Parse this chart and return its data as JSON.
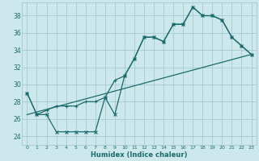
{
  "xlabel": "Humidex (Indice chaleur)",
  "bg_color": "#cce8ec",
  "grid_color": "#aacdd4",
  "line_color": "#1a6b6b",
  "xlim": [
    -0.5,
    23.5
  ],
  "ylim": [
    23.0,
    39.5
  ],
  "yticks": [
    24,
    26,
    28,
    30,
    32,
    34,
    36,
    38
  ],
  "xticks": [
    0,
    1,
    2,
    3,
    4,
    5,
    6,
    7,
    8,
    9,
    10,
    11,
    12,
    13,
    14,
    15,
    16,
    17,
    18,
    19,
    20,
    21,
    22,
    23
  ],
  "line1_x": [
    0,
    1,
    2,
    3,
    4,
    5,
    6,
    7,
    8,
    9,
    10,
    11,
    12,
    13,
    14,
    15,
    16,
    17,
    18,
    19,
    20,
    21,
    22,
    23
  ],
  "line1_y": [
    29.0,
    26.5,
    26.5,
    24.5,
    24.5,
    24.5,
    24.5,
    24.5,
    28.5,
    26.5,
    31.0,
    33.0,
    35.5,
    35.5,
    35.0,
    37.0,
    37.0,
    39.0,
    38.0,
    38.0,
    37.5,
    35.5,
    34.5,
    33.5
  ],
  "line2_x": [
    0,
    1,
    2,
    3,
    4,
    5,
    6,
    7,
    8,
    9,
    10,
    11,
    12,
    13,
    14,
    15,
    16,
    17,
    18,
    19,
    20,
    21,
    22,
    23
  ],
  "line2_y": [
    29.0,
    26.5,
    27.0,
    27.5,
    27.5,
    27.5,
    28.0,
    28.0,
    28.5,
    30.5,
    31.0,
    33.0,
    35.5,
    35.5,
    35.0,
    37.0,
    37.0,
    39.0,
    38.0,
    38.0,
    37.5,
    35.5,
    34.5,
    33.5
  ],
  "line3_x": [
    0,
    23
  ],
  "line3_y": [
    26.5,
    33.5
  ]
}
